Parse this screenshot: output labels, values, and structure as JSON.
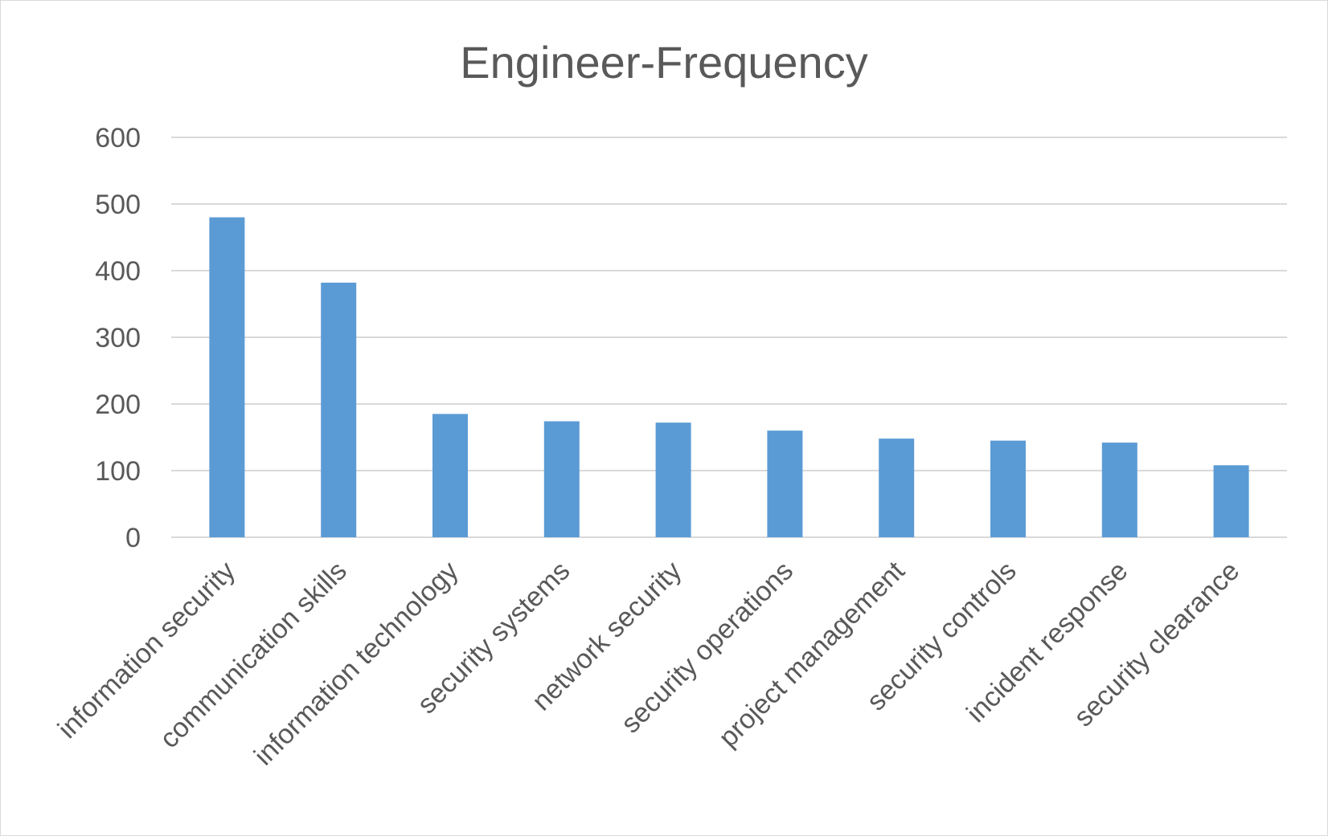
{
  "chart_data": {
    "type": "bar",
    "title": "Engineer-Frequency",
    "xlabel": "",
    "ylabel": "",
    "categories": [
      "information security",
      "communication skills",
      "information technology",
      "security systems",
      "network security",
      "security operations",
      "project management",
      "security controls",
      "incident response",
      "security clearance"
    ],
    "values": [
      480,
      382,
      185,
      174,
      172,
      160,
      148,
      145,
      142,
      108
    ],
    "ylim": [
      0,
      600
    ],
    "yticks": [
      "0",
      "100",
      "200",
      "300",
      "400",
      "500",
      "600"
    ],
    "grid": true,
    "legend": "none",
    "bar_color": "#5b9bd5"
  }
}
